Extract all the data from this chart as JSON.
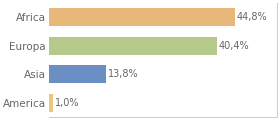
{
  "categories": [
    "America",
    "Asia",
    "Europa",
    "Africa"
  ],
  "values": [
    1.0,
    13.8,
    40.4,
    44.8
  ],
  "labels": [
    "1,0%",
    "13,8%",
    "40,4%",
    "44,8%"
  ],
  "colors": [
    "#e8c87a",
    "#6b8ec4",
    "#b5c98a",
    "#e8b87a"
  ],
  "xlim": [
    0,
    55
  ],
  "background_color": "#ffffff",
  "label_fontsize": 7,
  "tick_fontsize": 7.5,
  "bar_height": 0.62,
  "border_color": "#cccccc",
  "text_color": "#666666"
}
